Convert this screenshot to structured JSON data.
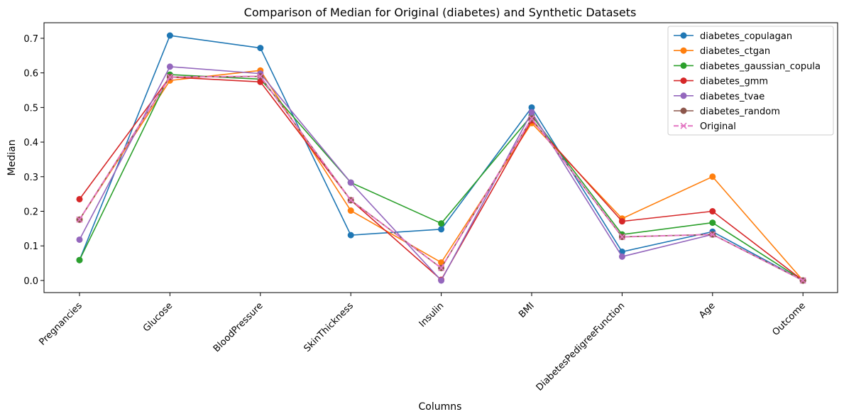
{
  "chart_data": {
    "type": "line",
    "title": "Comparison of Median for Original (diabetes) and Synthetic Datasets",
    "xlabel": "Columns",
    "ylabel": "Median",
    "categories": [
      "Pregnancies",
      "Glucose",
      "BloodPressure",
      "SkinThickness",
      "Insulin",
      "BMI",
      "DiabetesPedigreeFunction",
      "Age",
      "Outcome"
    ],
    "ylim": [
      -0.035,
      0.745
    ],
    "yticks": [
      0.0,
      0.1,
      0.2,
      0.3,
      0.4,
      0.5,
      0.6,
      0.7
    ],
    "ytick_labels": [
      "0.0",
      "0.1",
      "0.2",
      "0.3",
      "0.4",
      "0.5",
      "0.6",
      "0.7"
    ],
    "grid": false,
    "legend_position": "top-right",
    "series": [
      {
        "name": "diabetes_copulagan",
        "color": "#1f77b4",
        "marker": "circle",
        "dashed": false,
        "values": [
          0.059,
          0.708,
          0.672,
          0.131,
          0.148,
          0.5,
          0.083,
          0.141,
          0.0
        ]
      },
      {
        "name": "diabetes_ctgan",
        "color": "#ff7f0e",
        "marker": "circle",
        "dashed": false,
        "values": [
          0.176,
          0.578,
          0.607,
          0.202,
          0.052,
          0.455,
          0.179,
          0.3,
          0.0
        ]
      },
      {
        "name": "diabetes_gaussian_copula",
        "color": "#2ca02c",
        "marker": "circle",
        "dashed": false,
        "values": [
          0.059,
          0.595,
          0.582,
          0.283,
          0.165,
          0.477,
          0.133,
          0.167,
          0.0
        ]
      },
      {
        "name": "diabetes_gmm",
        "color": "#d62728",
        "marker": "circle",
        "dashed": false,
        "values": [
          0.235,
          0.588,
          0.574,
          0.232,
          0.002,
          0.463,
          0.171,
          0.2,
          0.0
        ]
      },
      {
        "name": "diabetes_tvae",
        "color": "#9467bd",
        "marker": "circle",
        "dashed": false,
        "values": [
          0.118,
          0.618,
          0.598,
          0.283,
          0.0,
          0.486,
          0.069,
          0.133,
          0.0
        ]
      },
      {
        "name": "diabetes_random",
        "color": "#8c564b",
        "marker": "circle",
        "dashed": false,
        "values": [
          0.176,
          0.588,
          0.59,
          0.232,
          0.036,
          0.468,
          0.126,
          0.133,
          0.0
        ]
      },
      {
        "name": "Original",
        "color": "#e377c2",
        "marker": "x",
        "dashed": true,
        "values": [
          0.176,
          0.588,
          0.59,
          0.232,
          0.036,
          0.468,
          0.126,
          0.133,
          0.0
        ]
      }
    ]
  }
}
